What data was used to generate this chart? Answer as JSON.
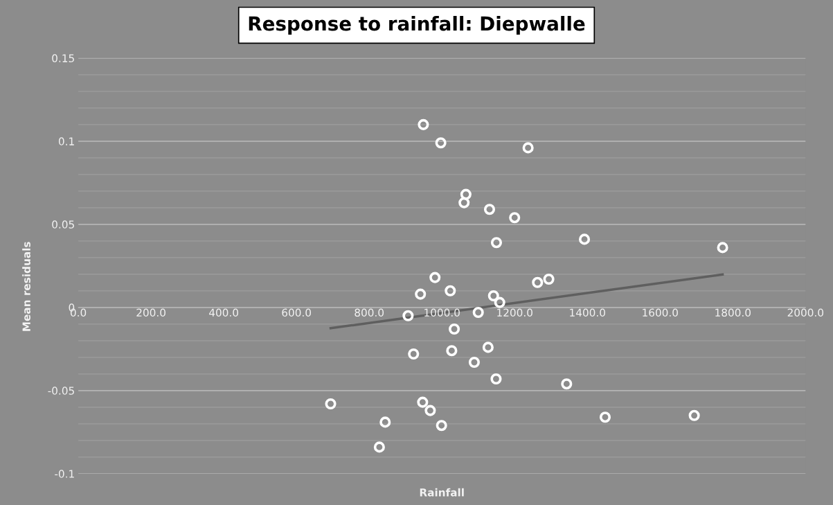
{
  "chart_data": {
    "type": "scatter",
    "title": "Response to rainfall: Diepwalle",
    "xlabel": "Rainfall",
    "ylabel": "Mean residuals",
    "xlim": [
      0,
      2000
    ],
    "xticks": [
      {
        "value": 0,
        "label": "0.0"
      },
      {
        "value": 200,
        "label": "200.0"
      },
      {
        "value": 400,
        "label": "400.0"
      },
      {
        "value": 600,
        "label": "600.0"
      },
      {
        "value": 800,
        "label": "800.0"
      },
      {
        "value": 1000,
        "label": "1000.0"
      },
      {
        "value": 1200,
        "label": "1200.0"
      },
      {
        "value": 1400,
        "label": "1400.0"
      },
      {
        "value": 1600,
        "label": "1600.0"
      },
      {
        "value": 1800,
        "label": "1800.0"
      },
      {
        "value": 2000,
        "label": "2000.0"
      }
    ],
    "ylim": [
      -0.1,
      0.15
    ],
    "yticks": [
      -0.1,
      {
        "value": -0.09,
        "label": null
      },
      {
        "value": -0.08,
        "label": null
      },
      {
        "value": -0.07,
        "label": null
      },
      {
        "value": -0.06,
        "label": null
      },
      -0.05,
      {
        "value": -0.04,
        "label": null
      },
      {
        "value": -0.03,
        "label": null
      },
      {
        "value": -0.02,
        "label": null
      },
      {
        "value": -0.01,
        "label": null
      },
      0,
      {
        "value": 0.01,
        "label": null
      },
      {
        "value": 0.02,
        "label": null
      },
      {
        "value": 0.03,
        "label": null
      },
      {
        "value": 0.04,
        "label": null
      },
      0.05,
      {
        "value": 0.06,
        "label": null
      },
      {
        "value": 0.07,
        "label": null
      },
      {
        "value": 0.08,
        "label": null
      },
      {
        "value": 0.09,
        "label": null
      },
      0.1,
      {
        "value": 0.11,
        "label": null
      },
      {
        "value": 0.12,
        "label": null
      },
      {
        "value": 0.13,
        "label": null
      },
      {
        "value": 0.14,
        "label": null
      },
      0.15
    ],
    "grid": "y",
    "marker": "circle",
    "series": [
      {
        "color": "#ffffff",
        "x": [
          949,
          997,
          1237,
          1066,
          1061,
          1131,
          1200,
          1150,
          1392,
          1772,
          981,
          941,
          1023,
          1263,
          1294,
          1142,
          1159,
          907,
          1100,
          1034,
          922,
          1027,
          1127,
          1089,
          1149,
          1343,
          694,
          947,
          968,
          844,
          999,
          828,
          1449,
          1694
        ],
        "values": [
          0.11,
          0.099,
          0.096,
          0.068,
          0.063,
          0.059,
          0.054,
          0.039,
          0.041,
          0.036,
          0.018,
          0.008,
          0.01,
          0.015,
          0.017,
          0.007,
          0.003,
          -0.005,
          -0.003,
          -0.013,
          -0.028,
          -0.026,
          -0.024,
          -0.033,
          -0.043,
          -0.046,
          -0.058,
          -0.057,
          -0.062,
          -0.069,
          -0.071,
          -0.084,
          -0.066,
          -0.065
        ]
      },
      {
        "type": "line",
        "color": "#5f5f5f",
        "marker": "none",
        "x": [
          694,
          1772
        ],
        "values": [
          -0.0125,
          0.0198
        ]
      }
    ]
  }
}
